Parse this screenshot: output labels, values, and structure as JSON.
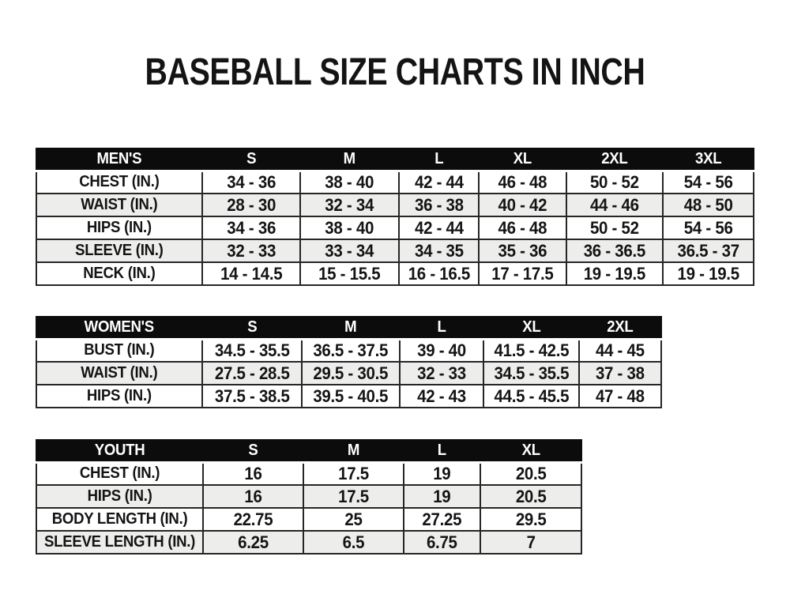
{
  "title": "BASEBALL SIZE CHARTS IN INCH",
  "colors": {
    "page_bg": "#ffffff",
    "header_bg": "#0c0c0c",
    "header_text": "#ffffff",
    "alt_row_bg": "#ededeb",
    "border": "#262626",
    "text": "#141414"
  },
  "tables": [
    {
      "name": "mens",
      "header": [
        "MEN'S",
        "S",
        "M",
        "L",
        "XL",
        "2XL",
        "3XL"
      ],
      "rows": [
        [
          "CHEST (IN.)",
          "34 - 36",
          "38 - 40",
          "42 - 44",
          "46 - 48",
          "50 - 52",
          "54 - 56"
        ],
        [
          "WAIST (IN.)",
          "28 - 30",
          "32 - 34",
          "36 - 38",
          "40 - 42",
          "44 - 46",
          "48 - 50"
        ],
        [
          "HIPS (IN.)",
          "34 - 36",
          "38 - 40",
          "42 - 44",
          "46 - 48",
          "50 - 52",
          "54 - 56"
        ],
        [
          "SLEEVE (IN.)",
          "32 - 33",
          "33 - 34",
          "34 - 35",
          "35 - 36",
          "36 - 36.5",
          "36.5 - 37"
        ],
        [
          "NECK (IN.)",
          "14 - 14.5",
          "15 - 15.5",
          "16 - 16.5",
          "17 - 17.5",
          "19 - 19.5",
          "19 - 19.5"
        ]
      ]
    },
    {
      "name": "womens",
      "header": [
        "WOMEN'S",
        "S",
        "M",
        "L",
        "XL",
        "2XL"
      ],
      "rows": [
        [
          "BUST (IN.)",
          "34.5 - 35.5",
          "36.5 - 37.5",
          "39 - 40",
          "41.5 - 42.5",
          "44 - 45"
        ],
        [
          "WAIST (IN.)",
          "27.5 - 28.5",
          "29.5 - 30.5",
          "32 - 33",
          "34.5 - 35.5",
          "37 - 38"
        ],
        [
          "HIPS (IN.)",
          "37.5 - 38.5",
          "39.5 - 40.5",
          "42 - 43",
          "44.5 - 45.5",
          "47 - 48"
        ]
      ]
    },
    {
      "name": "youth",
      "header": [
        "YOUTH",
        "S",
        "M",
        "L",
        "XL"
      ],
      "rows": [
        [
          "CHEST (IN.)",
          "16",
          "17.5",
          "19",
          "20.5"
        ],
        [
          "HIPS (IN.)",
          "16",
          "17.5",
          "19",
          "20.5"
        ],
        [
          "BODY LENGTH (IN.)",
          "22.75",
          "25",
          "27.25",
          "29.5"
        ],
        [
          "SLEEVE LENGTH (IN.)",
          "6.25",
          "6.5",
          "6.75",
          "7"
        ]
      ]
    }
  ]
}
